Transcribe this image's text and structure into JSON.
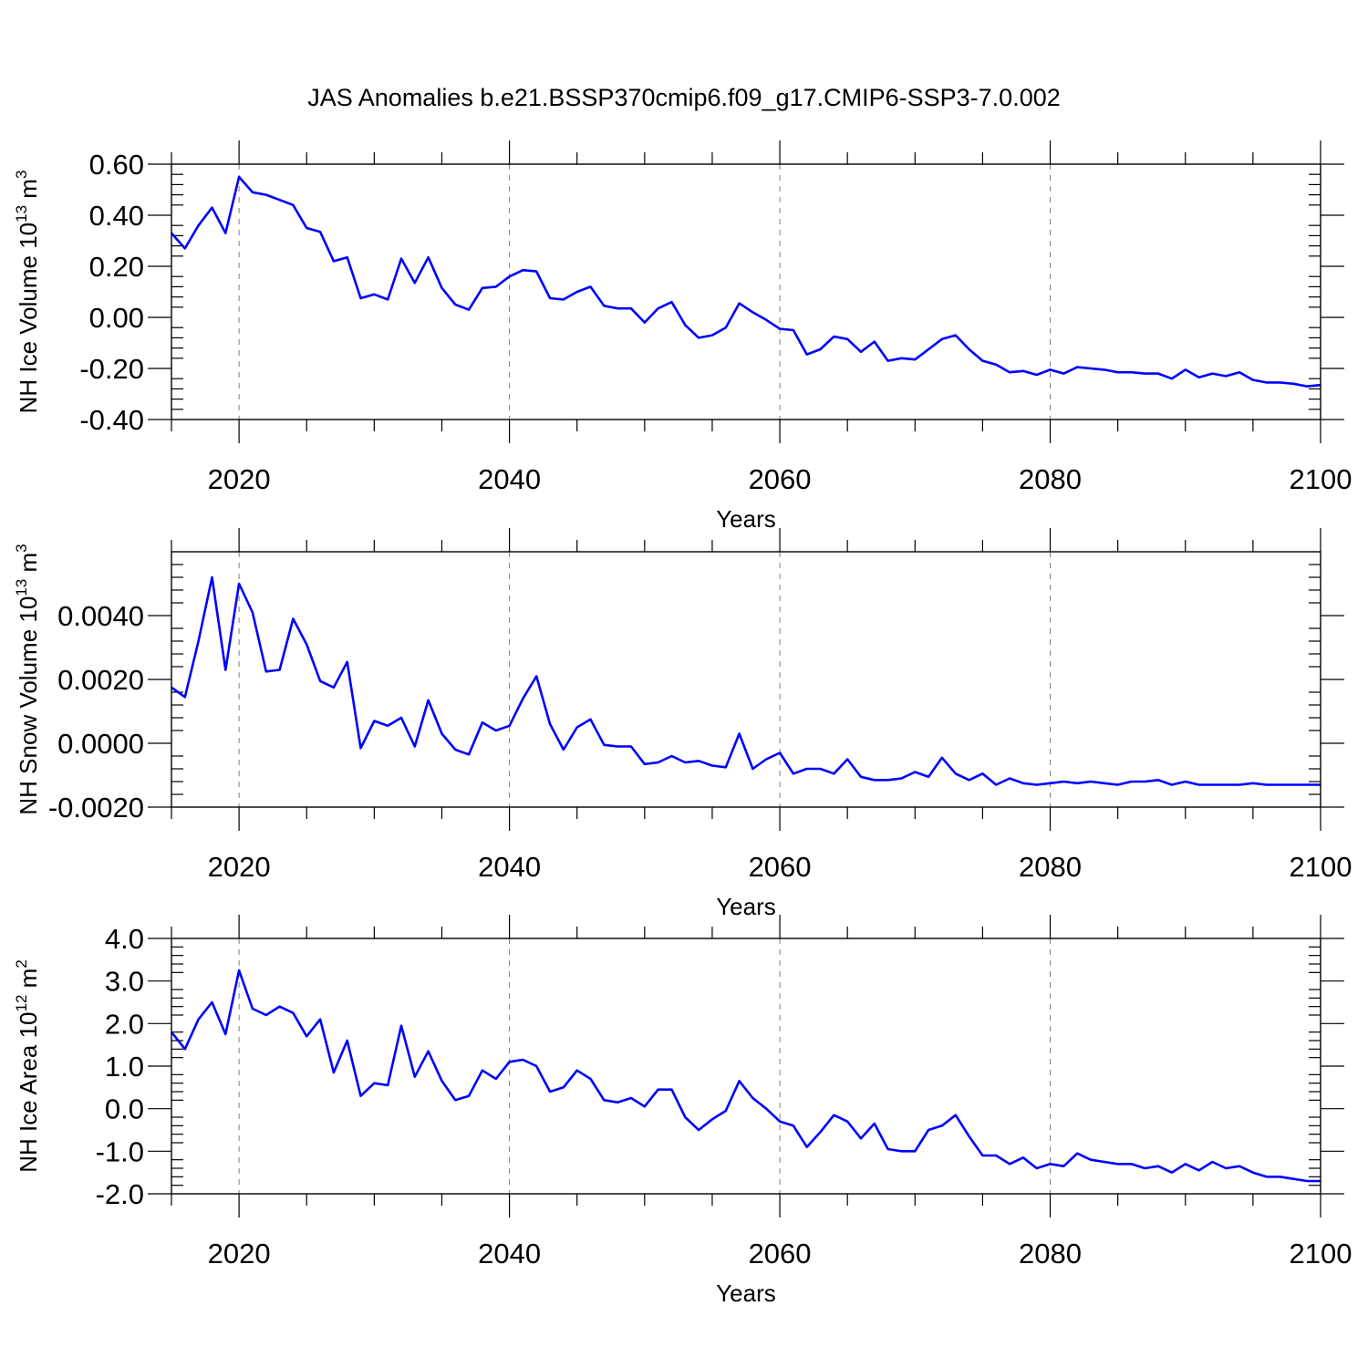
{
  "figure_title": "JAS Anomalies b.e21.BSSP370cmip6.f09_g17.CMIP6-SSP3-7.0.002",
  "colors": {
    "line": "#0000ff",
    "axis": "#000000",
    "grid": "#7f7f7f"
  },
  "chart_data": [
    {
      "type": "line",
      "title": "",
      "xlabel": "Years",
      "ylabel": {
        "base": "NH Ice Volume 10",
        "exponent": "13",
        "unit": " m",
        "unit_exponent": "3"
      },
      "xlim": [
        2015,
        2100
      ],
      "ylim": [
        -0.4,
        0.6
      ],
      "xticks": [
        2020,
        2040,
        2060,
        2080,
        2100
      ],
      "xtick_labels": [
        "2020",
        "2040",
        "2060",
        "2080",
        "2100"
      ],
      "yticks": [
        -0.4,
        -0.2,
        0.0,
        0.2,
        0.4,
        0.6
      ],
      "ytick_labels": [
        "-0.40",
        "-0.20",
        "0.00",
        "0.20",
        "0.40",
        "0.60"
      ],
      "grid": "vertical dashed at major x ticks",
      "x": [
        2015,
        2016,
        2017,
        2018,
        2019,
        2020,
        2021,
        2022,
        2023,
        2024,
        2025,
        2026,
        2027,
        2028,
        2029,
        2030,
        2031,
        2032,
        2033,
        2034,
        2035,
        2036,
        2037,
        2038,
        2039,
        2040,
        2041,
        2042,
        2043,
        2044,
        2045,
        2046,
        2047,
        2048,
        2049,
        2050,
        2051,
        2052,
        2053,
        2054,
        2055,
        2056,
        2057,
        2058,
        2059,
        2060,
        2061,
        2062,
        2063,
        2064,
        2065,
        2066,
        2067,
        2068,
        2069,
        2070,
        2071,
        2072,
        2073,
        2074,
        2075,
        2076,
        2077,
        2078,
        2079,
        2080,
        2081,
        2082,
        2083,
        2084,
        2085,
        2086,
        2087,
        2088,
        2089,
        2090,
        2091,
        2092,
        2093,
        2094,
        2095,
        2096,
        2097,
        2098,
        2099,
        2100
      ],
      "series": [
        {
          "values": [
            0.33,
            0.27,
            0.36,
            0.43,
            0.33,
            0.55,
            0.49,
            0.48,
            0.46,
            0.44,
            0.35,
            0.335,
            0.22,
            0.235,
            0.075,
            0.09,
            0.07,
            0.23,
            0.135,
            0.235,
            0.115,
            0.05,
            0.03,
            0.115,
            0.12,
            0.16,
            0.185,
            0.18,
            0.075,
            0.07,
            0.1,
            0.12,
            0.045,
            0.035,
            0.035,
            -0.02,
            0.035,
            0.06,
            -0.03,
            -0.08,
            -0.07,
            -0.04,
            0.055,
            0.02,
            -0.01,
            -0.045,
            -0.05,
            -0.145,
            -0.125,
            -0.075,
            -0.085,
            -0.135,
            -0.095,
            -0.17,
            -0.16,
            -0.165,
            -0.125,
            -0.085,
            -0.07,
            -0.125,
            -0.17,
            -0.185,
            -0.215,
            -0.21,
            -0.225,
            -0.205,
            -0.22,
            -0.195,
            -0.2,
            -0.205,
            -0.215,
            -0.215,
            -0.22,
            -0.22,
            -0.24,
            -0.205,
            -0.235,
            -0.22,
            -0.23,
            -0.215,
            -0.245,
            -0.255,
            -0.255,
            -0.26,
            -0.27,
            -0.265
          ]
        }
      ]
    },
    {
      "type": "line",
      "title": "",
      "xlabel": "Years",
      "ylabel": {
        "base": "NH Snow Volume 10",
        "exponent": "13",
        "unit": " m",
        "unit_exponent": "3"
      },
      "xlim": [
        2015,
        2100
      ],
      "ylim": [
        -0.002,
        0.006
      ],
      "xticks": [
        2020,
        2040,
        2060,
        2080,
        2100
      ],
      "xtick_labels": [
        "2020",
        "2040",
        "2060",
        "2080",
        "2100"
      ],
      "yticks": [
        -0.002,
        0.0,
        0.002,
        0.004
      ],
      "ytick_labels": [
        "-0.0020",
        "0.0000",
        "0.0020",
        "0.0040"
      ],
      "grid": "vertical dashed at major x ticks",
      "x": [
        2015,
        2016,
        2017,
        2018,
        2019,
        2020,
        2021,
        2022,
        2023,
        2024,
        2025,
        2026,
        2027,
        2028,
        2029,
        2030,
        2031,
        2032,
        2033,
        2034,
        2035,
        2036,
        2037,
        2038,
        2039,
        2040,
        2041,
        2042,
        2043,
        2044,
        2045,
        2046,
        2047,
        2048,
        2049,
        2050,
        2051,
        2052,
        2053,
        2054,
        2055,
        2056,
        2057,
        2058,
        2059,
        2060,
        2061,
        2062,
        2063,
        2064,
        2065,
        2066,
        2067,
        2068,
        2069,
        2070,
        2071,
        2072,
        2073,
        2074,
        2075,
        2076,
        2077,
        2078,
        2079,
        2080,
        2081,
        2082,
        2083,
        2084,
        2085,
        2086,
        2087,
        2088,
        2089,
        2090,
        2091,
        2092,
        2093,
        2094,
        2095,
        2096,
        2097,
        2098,
        2099,
        2100
      ],
      "series": [
        {
          "values": [
            0.00175,
            0.00145,
            0.0032,
            0.0052,
            0.0023,
            0.005,
            0.0041,
            0.00225,
            0.0023,
            0.0039,
            0.0031,
            0.00195,
            0.00175,
            0.00255,
            -0.00015,
            0.0007,
            0.00055,
            0.0008,
            -0.0001,
            0.00135,
            0.0003,
            -0.0002,
            -0.00035,
            0.00065,
            0.0004,
            0.00055,
            0.0014,
            0.0021,
            0.0006,
            -0.0002,
            0.0005,
            0.00075,
            -5e-05,
            -0.0001,
            -0.0001,
            -0.00065,
            -0.0006,
            -0.0004,
            -0.0006,
            -0.00055,
            -0.0007,
            -0.00075,
            0.0003,
            -0.0008,
            -0.0005,
            -0.0003,
            -0.00095,
            -0.0008,
            -0.0008,
            -0.00095,
            -0.0005,
            -0.00105,
            -0.00115,
            -0.00115,
            -0.0011,
            -0.0009,
            -0.00105,
            -0.00045,
            -0.00095,
            -0.00115,
            -0.00095,
            -0.0013,
            -0.0011,
            -0.00125,
            -0.0013,
            -0.00125,
            -0.0012,
            -0.00125,
            -0.0012,
            -0.00125,
            -0.0013,
            -0.0012,
            -0.0012,
            -0.00115,
            -0.0013,
            -0.0012,
            -0.0013,
            -0.0013,
            -0.0013,
            -0.0013,
            -0.00125,
            -0.0013,
            -0.0013,
            -0.0013,
            -0.0013,
            -0.0013
          ]
        }
      ]
    },
    {
      "type": "line",
      "title": "",
      "xlabel": "Years",
      "ylabel": {
        "base": "NH Ice Area 10",
        "exponent": "12",
        "unit": " m",
        "unit_exponent": "2"
      },
      "xlim": [
        2015,
        2100
      ],
      "ylim": [
        -2.0,
        4.0
      ],
      "xticks": [
        2020,
        2040,
        2060,
        2080,
        2100
      ],
      "xtick_labels": [
        "2020",
        "2040",
        "2060",
        "2080",
        "2100"
      ],
      "yticks": [
        -2.0,
        -1.0,
        0.0,
        1.0,
        2.0,
        3.0,
        4.0
      ],
      "ytick_labels": [
        "-2.0",
        "-1.0",
        "0.0",
        "1.0",
        "2.0",
        "3.0",
        "4.0"
      ],
      "grid": "vertical dashed at major x ticks",
      "x": [
        2015,
        2016,
        2017,
        2018,
        2019,
        2020,
        2021,
        2022,
        2023,
        2024,
        2025,
        2026,
        2027,
        2028,
        2029,
        2030,
        2031,
        2032,
        2033,
        2034,
        2035,
        2036,
        2037,
        2038,
        2039,
        2040,
        2041,
        2042,
        2043,
        2044,
        2045,
        2046,
        2047,
        2048,
        2049,
        2050,
        2051,
        2052,
        2053,
        2054,
        2055,
        2056,
        2057,
        2058,
        2059,
        2060,
        2061,
        2062,
        2063,
        2064,
        2065,
        2066,
        2067,
        2068,
        2069,
        2070,
        2071,
        2072,
        2073,
        2074,
        2075,
        2076,
        2077,
        2078,
        2079,
        2080,
        2081,
        2082,
        2083,
        2084,
        2085,
        2086,
        2087,
        2088,
        2089,
        2090,
        2091,
        2092,
        2093,
        2094,
        2095,
        2096,
        2097,
        2098,
        2099,
        2100
      ],
      "series": [
        {
          "values": [
            1.8,
            1.4,
            2.1,
            2.5,
            1.75,
            3.25,
            2.35,
            2.2,
            2.4,
            2.25,
            1.7,
            2.1,
            0.85,
            1.6,
            0.3,
            0.6,
            0.55,
            1.95,
            0.75,
            1.35,
            0.65,
            0.2,
            0.3,
            0.9,
            0.7,
            1.1,
            1.15,
            1.0,
            0.4,
            0.5,
            0.9,
            0.7,
            0.2,
            0.15,
            0.25,
            0.05,
            0.45,
            0.45,
            -0.2,
            -0.5,
            -0.25,
            -0.05,
            0.65,
            0.25,
            0.0,
            -0.3,
            -0.4,
            -0.9,
            -0.55,
            -0.15,
            -0.3,
            -0.7,
            -0.35,
            -0.95,
            -1.0,
            -1.0,
            -0.5,
            -0.4,
            -0.15,
            -0.65,
            -1.1,
            -1.1,
            -1.3,
            -1.15,
            -1.4,
            -1.3,
            -1.35,
            -1.05,
            -1.2,
            -1.25,
            -1.3,
            -1.3,
            -1.4,
            -1.35,
            -1.5,
            -1.3,
            -1.45,
            -1.25,
            -1.4,
            -1.35,
            -1.5,
            -1.6,
            -1.6,
            -1.65,
            -1.7,
            -1.7
          ]
        }
      ]
    }
  ]
}
